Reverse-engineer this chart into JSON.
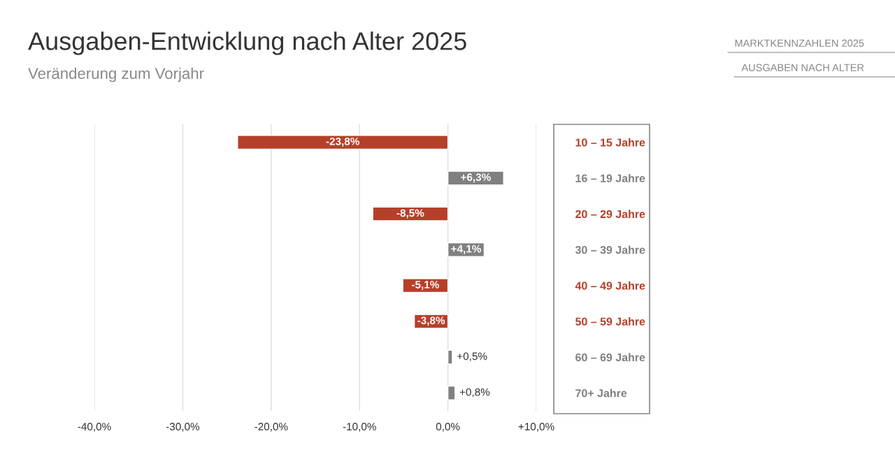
{
  "chart_data": {
    "type": "bar",
    "orientation": "horizontal",
    "title": "Ausgaben-Entwicklung nach Alter 2025",
    "subtitle": "Veränderung zum Vorjahr",
    "annotations": [
      "MARKTKENNZAHLEN 2025",
      "AUSGABEN NACH ALTER"
    ],
    "categories": [
      "10 – 15 Jahre",
      "16 – 19 Jahre",
      "20 – 29 Jahre",
      "30 – 39 Jahre",
      "40 – 49 Jahre",
      "50 – 59 Jahre",
      "60 – 69 Jahre",
      "70+ Jahre"
    ],
    "values": [
      -23.8,
      6.3,
      -8.5,
      4.1,
      -5.1,
      -3.8,
      0.5,
      0.8
    ],
    "value_labels": [
      "-23,8%",
      "+6,3%",
      "-8,5%",
      "+4,1%",
      "-5,1%",
      "-3,8%",
      "+0,5%",
      "+0,8%"
    ],
    "colors": [
      "#b5402a",
      "#808080",
      "#b5402a",
      "#808080",
      "#b5402a",
      "#b5402a",
      "#808080",
      "#808080"
    ],
    "xlim": [
      -40,
      10
    ],
    "xticks": [
      {
        "value": -40,
        "label": "-40,0%"
      },
      {
        "value": -30,
        "label": "-30,0%"
      },
      {
        "value": -20,
        "label": "-20,0%"
      },
      {
        "value": -10,
        "label": "-10,0%"
      },
      {
        "value": 0,
        "label": "0,0%"
      },
      {
        "value": 10,
        "label": "+10,0%"
      }
    ],
    "grid": "x",
    "legend": false
  }
}
